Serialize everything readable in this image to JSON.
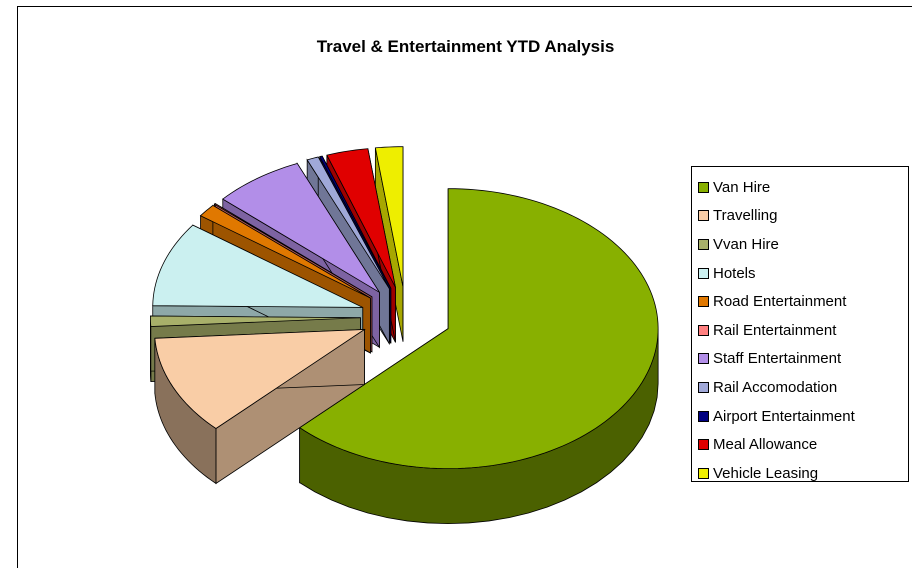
{
  "chart_data": {
    "type": "pie",
    "title": "Travel & Entertainment YTD Analysis",
    "categories": [
      "Van Hire",
      "Travelling",
      "Vvan Hire",
      "Hotels",
      "Road Entertainment",
      "Rail Entertainment",
      "Staff Entertainment",
      "Rail Accomodation",
      "Airport Entertainment",
      "Meal Allowance",
      "Vehicle Leasing"
    ],
    "values": [
      62.5,
      11.5,
      1.2,
      9.8,
      1.5,
      0.1,
      7.0,
      0.9,
      0.2,
      3.2,
      2.1
    ],
    "colors": [
      "#88b000",
      "#f9cda6",
      "#a8b06a",
      "#cbf0f0",
      "#e07800",
      "#ff8080",
      "#b28ee8",
      "#a0a8d8",
      "#000080",
      "#e00000",
      "#eeee00"
    ],
    "legend_position": "right",
    "exploded": true,
    "three_d": true
  }
}
